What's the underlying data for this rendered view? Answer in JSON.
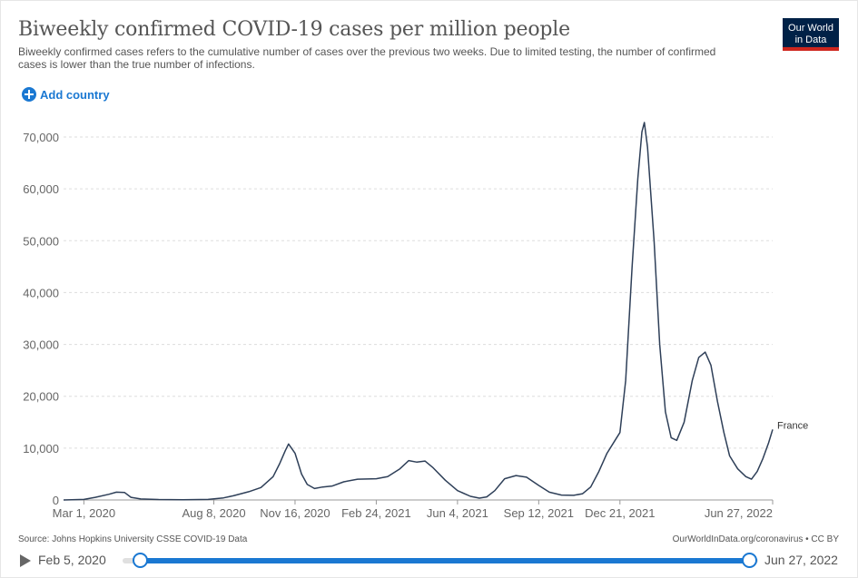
{
  "header": {
    "title": "Biweekly confirmed COVID-19 cases per million people",
    "subtitle": "Biweekly confirmed cases refers to the cumulative number of cases over the previous two weeks. Due to limited testing, the number of confirmed cases is lower than the true number of infections.",
    "logo_line1": "Our World",
    "logo_line2": "in Data"
  },
  "controls": {
    "add_country_label": "Add country",
    "add_icon": "plus-circle-icon"
  },
  "footer": {
    "source": "Source: Johns Hopkins University CSSE COVID-19 Data",
    "credit": "OurWorldInData.org/coronavirus • CC BY"
  },
  "timeline": {
    "start_label": "Feb 5, 2020",
    "end_label": "Jun 27, 2022",
    "start_fraction": 0.0,
    "end_fraction": 1.0,
    "play_icon": "play-icon"
  },
  "colors": {
    "line": "#2e3f58",
    "accent": "#1a78d2",
    "logo_bg": "#002147",
    "logo_bar": "#ce261e"
  },
  "chart_data": {
    "type": "line",
    "title": "Biweekly confirmed COVID-19 cases per million people",
    "xlabel": "",
    "ylabel": "",
    "x_range": [
      "2020-02-05",
      "2022-06-27"
    ],
    "ylim": [
      0,
      70000
    ],
    "y_ticks": [
      0,
      10000,
      20000,
      30000,
      40000,
      50000,
      60000,
      70000
    ],
    "y_tick_labels": [
      "0",
      "10,000",
      "20,000",
      "30,000",
      "40,000",
      "50,000",
      "60,000",
      "70,000"
    ],
    "x_ticks": [
      "2020-03-01",
      "2020-08-08",
      "2020-11-16",
      "2021-02-24",
      "2021-06-04",
      "2021-09-12",
      "2021-12-21",
      "2022-06-27"
    ],
    "x_tick_labels": [
      "Mar 1, 2020",
      "Aug 8, 2020",
      "Nov 16, 2020",
      "Feb 24, 2021",
      "Jun 4, 2021",
      "Sep 12, 2021",
      "Dec 21, 2021",
      "Jun 27, 2022"
    ],
    "grid": true,
    "legend": "inline-end",
    "series": [
      {
        "name": "France",
        "points": [
          [
            "2020-02-05",
            0
          ],
          [
            "2020-03-01",
            100
          ],
          [
            "2020-03-15",
            500
          ],
          [
            "2020-04-01",
            1100
          ],
          [
            "2020-04-10",
            1500
          ],
          [
            "2020-04-20",
            1450
          ],
          [
            "2020-04-28",
            500
          ],
          [
            "2020-05-10",
            200
          ],
          [
            "2020-06-01",
            80
          ],
          [
            "2020-07-01",
            60
          ],
          [
            "2020-08-01",
            100
          ],
          [
            "2020-08-20",
            400
          ],
          [
            "2020-09-01",
            800
          ],
          [
            "2020-09-20",
            1600
          ],
          [
            "2020-10-05",
            2400
          ],
          [
            "2020-10-20",
            4500
          ],
          [
            "2020-10-28",
            7000
          ],
          [
            "2020-11-04",
            9500
          ],
          [
            "2020-11-08",
            10800
          ],
          [
            "2020-11-16",
            9000
          ],
          [
            "2020-11-24",
            5000
          ],
          [
            "2020-12-01",
            3000
          ],
          [
            "2020-12-10",
            2200
          ],
          [
            "2020-12-20",
            2500
          ],
          [
            "2021-01-01",
            2700
          ],
          [
            "2021-01-15",
            3500
          ],
          [
            "2021-02-01",
            4000
          ],
          [
            "2021-02-24",
            4100
          ],
          [
            "2021-03-10",
            4500
          ],
          [
            "2021-03-25",
            6000
          ],
          [
            "2021-04-05",
            7600
          ],
          [
            "2021-04-15",
            7300
          ],
          [
            "2021-04-25",
            7500
          ],
          [
            "2021-05-05",
            6200
          ],
          [
            "2021-05-20",
            3800
          ],
          [
            "2021-06-04",
            1800
          ],
          [
            "2021-06-20",
            700
          ],
          [
            "2021-07-01",
            350
          ],
          [
            "2021-07-10",
            600
          ],
          [
            "2021-07-20",
            1800
          ],
          [
            "2021-08-01",
            4100
          ],
          [
            "2021-08-15",
            4700
          ],
          [
            "2021-08-28",
            4400
          ],
          [
            "2021-09-12",
            2800
          ],
          [
            "2021-09-25",
            1500
          ],
          [
            "2021-10-10",
            950
          ],
          [
            "2021-10-25",
            900
          ],
          [
            "2021-11-05",
            1200
          ],
          [
            "2021-11-15",
            2500
          ],
          [
            "2021-11-25",
            5500
          ],
          [
            "2021-12-05",
            9000
          ],
          [
            "2021-12-15",
            11500
          ],
          [
            "2021-12-21",
            13000
          ],
          [
            "2021-12-28",
            23000
          ],
          [
            "2022-01-05",
            45000
          ],
          [
            "2022-01-12",
            62000
          ],
          [
            "2022-01-17",
            71000
          ],
          [
            "2022-01-20",
            72800
          ],
          [
            "2022-01-24",
            68000
          ],
          [
            "2022-02-01",
            50000
          ],
          [
            "2022-02-08",
            30000
          ],
          [
            "2022-02-15",
            17000
          ],
          [
            "2022-02-22",
            12000
          ],
          [
            "2022-03-01",
            11500
          ],
          [
            "2022-03-10",
            15000
          ],
          [
            "2022-03-20",
            23000
          ],
          [
            "2022-03-28",
            27500
          ],
          [
            "2022-04-05",
            28500
          ],
          [
            "2022-04-12",
            26000
          ],
          [
            "2022-04-20",
            19000
          ],
          [
            "2022-04-28",
            13000
          ],
          [
            "2022-05-05",
            8500
          ],
          [
            "2022-05-15",
            6000
          ],
          [
            "2022-05-25",
            4500
          ],
          [
            "2022-06-01",
            4000
          ],
          [
            "2022-06-08",
            5500
          ],
          [
            "2022-06-15",
            8000
          ],
          [
            "2022-06-22",
            11000
          ],
          [
            "2022-06-27",
            13600
          ]
        ]
      }
    ]
  }
}
